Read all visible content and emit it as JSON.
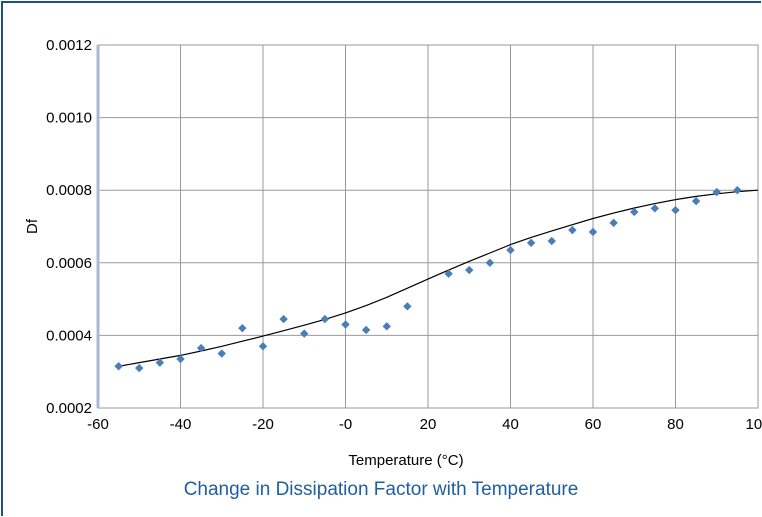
{
  "chart_data": {
    "type": "scatter",
    "caption": "Change in Dissipation Factor with Temperature",
    "xlabel": "Temperature (°C)",
    "ylabel": "Df",
    "xlim": [
      -60,
      100
    ],
    "ylim": [
      0.0002,
      0.0012
    ],
    "x_ticks": [
      -60,
      -40,
      -20,
      0,
      20,
      40,
      60,
      80,
      100
    ],
    "x_tick_labels": [
      "-60",
      "-40",
      "-20",
      "-0",
      "20",
      "40",
      "60",
      "80",
      "100"
    ],
    "y_ticks": [
      0.0002,
      0.0004,
      0.0006,
      0.0008,
      0.001,
      0.0012
    ],
    "y_tick_labels": [
      "0.0002",
      "0.0004",
      "0.0006",
      "0.0008",
      "0.0010",
      "0.0012"
    ],
    "grid": true,
    "series": [
      {
        "marker_color": "#4a7ebb",
        "x": [
          -55,
          -50,
          -45,
          -40,
          -35,
          -30,
          -25,
          -20,
          -15,
          -10,
          -5,
          0,
          5,
          10,
          15,
          25,
          30,
          35,
          40,
          45,
          50,
          55,
          60,
          65,
          70,
          75,
          80,
          85,
          90,
          95
        ],
        "y": [
          0.000315,
          0.00031,
          0.000325,
          0.000335,
          0.000365,
          0.00035,
          0.00042,
          0.00037,
          0.000445,
          0.000405,
          0.000445,
          0.00043,
          0.000415,
          0.000425,
          0.00048,
          0.00057,
          0.00058,
          0.0006,
          0.000635,
          0.000655,
          0.00066,
          0.00069,
          0.000685,
          0.00071,
          0.00074,
          0.00075,
          0.000745,
          0.00077,
          0.000795,
          0.0008
        ]
      }
    ],
    "trendline": {
      "color": "#000000",
      "x": [
        -55,
        -50,
        -45,
        -40,
        -35,
        -30,
        -25,
        -20,
        -15,
        -10,
        -5,
        0,
        5,
        10,
        15,
        20,
        25,
        30,
        35,
        40,
        45,
        50,
        55,
        60,
        65,
        70,
        75,
        80,
        85,
        90,
        95,
        100
      ],
      "y": [
        0.000315,
        0.000325,
        0.000335,
        0.000345,
        0.000357,
        0.00037,
        0.000384,
        0.000398,
        0.000413,
        0.000428,
        0.000444,
        0.000462,
        0.000482,
        0.000505,
        0.00053,
        0.000555,
        0.00058,
        0.000604,
        0.000627,
        0.00065,
        0.00067,
        0.000688,
        0.000705,
        0.000722,
        0.000737,
        0.000751,
        0.000763,
        0.000774,
        0.000783,
        0.00079,
        0.000796,
        0.0008
      ]
    }
  }
}
